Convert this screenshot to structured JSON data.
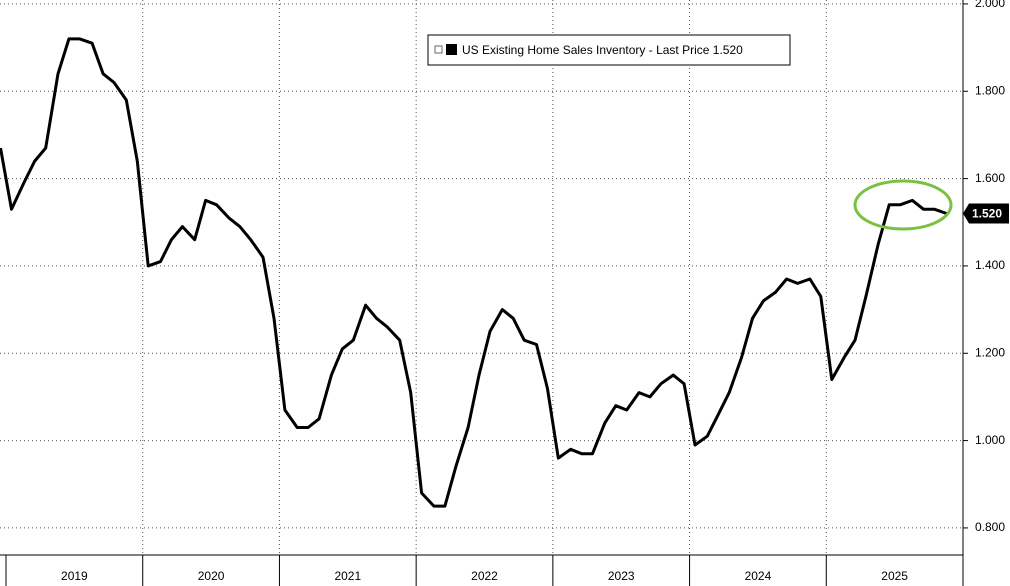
{
  "chart_data": {
    "type": "line",
    "legend_label": "US Existing Home Sales Inventory - Last Price 1.520",
    "last_price_label": "1.520",
    "x": [
      2018.96,
      2019.04,
      2019.13,
      2019.21,
      2019.29,
      2019.38,
      2019.46,
      2019.54,
      2019.63,
      2019.71,
      2019.79,
      2019.88,
      2019.96,
      2020.04,
      2020.13,
      2020.21,
      2020.29,
      2020.38,
      2020.46,
      2020.54,
      2020.63,
      2020.71,
      2020.79,
      2020.88,
      2020.96,
      2021.04,
      2021.13,
      2021.21,
      2021.29,
      2021.38,
      2021.46,
      2021.54,
      2021.63,
      2021.71,
      2021.79,
      2021.88,
      2021.96,
      2022.04,
      2022.13,
      2022.21,
      2022.29,
      2022.38,
      2022.46,
      2022.54,
      2022.63,
      2022.71,
      2022.79,
      2022.88,
      2022.96,
      2023.04,
      2023.13,
      2023.21,
      2023.29,
      2023.38,
      2023.46,
      2023.54,
      2023.63,
      2023.71,
      2023.79,
      2023.88,
      2023.96,
      2024.04,
      2024.13,
      2024.21,
      2024.29,
      2024.38,
      2024.46,
      2024.54,
      2024.63,
      2024.71,
      2024.79,
      2024.88,
      2024.96,
      2025.04,
      2025.13,
      2025.21,
      2025.29,
      2025.38,
      2025.46,
      2025.54,
      2025.63,
      2025.71,
      2025.79,
      2025.88
    ],
    "series": [
      {
        "name": "US Existing Home Sales Inventory",
        "color": "#000000",
        "values": [
          1.67,
          1.53,
          1.59,
          1.64,
          1.67,
          1.84,
          1.92,
          1.92,
          1.91,
          1.84,
          1.82,
          1.78,
          1.64,
          1.4,
          1.41,
          1.46,
          1.49,
          1.46,
          1.55,
          1.54,
          1.51,
          1.49,
          1.46,
          1.42,
          1.28,
          1.07,
          1.03,
          1.03,
          1.05,
          1.15,
          1.21,
          1.23,
          1.31,
          1.28,
          1.26,
          1.23,
          1.11,
          0.88,
          0.85,
          0.85,
          0.94,
          1.03,
          1.15,
          1.25,
          1.3,
          1.28,
          1.23,
          1.22,
          1.12,
          0.96,
          0.98,
          0.97,
          0.97,
          1.04,
          1.08,
          1.07,
          1.11,
          1.1,
          1.13,
          1.15,
          1.13,
          0.99,
          1.01,
          1.06,
          1.11,
          1.19,
          1.28,
          1.32,
          1.34,
          1.37,
          1.36,
          1.37,
          1.33,
          1.14,
          1.19,
          1.23,
          1.33,
          1.45,
          1.54,
          1.54,
          1.55,
          1.53,
          1.53,
          1.52
        ]
      }
    ],
    "xlim": [
      2018.956,
      2026.0
    ],
    "xticks": [
      2019,
      2020,
      2021,
      2022,
      2023,
      2024,
      2025
    ],
    "ylim": [
      0.738,
      2.009
    ],
    "yticks": [
      {
        "value": 0.8,
        "label": "0.800"
      },
      {
        "value": 1.0,
        "label": "1.000"
      },
      {
        "value": 1.2,
        "label": "1.200"
      },
      {
        "value": 1.4,
        "label": "1.400"
      },
      {
        "value": 1.6,
        "label": "1.600"
      },
      {
        "value": 1.8,
        "label": "1.800"
      },
      {
        "value": 2.0,
        "label": "2.000"
      }
    ],
    "grid": true
  }
}
